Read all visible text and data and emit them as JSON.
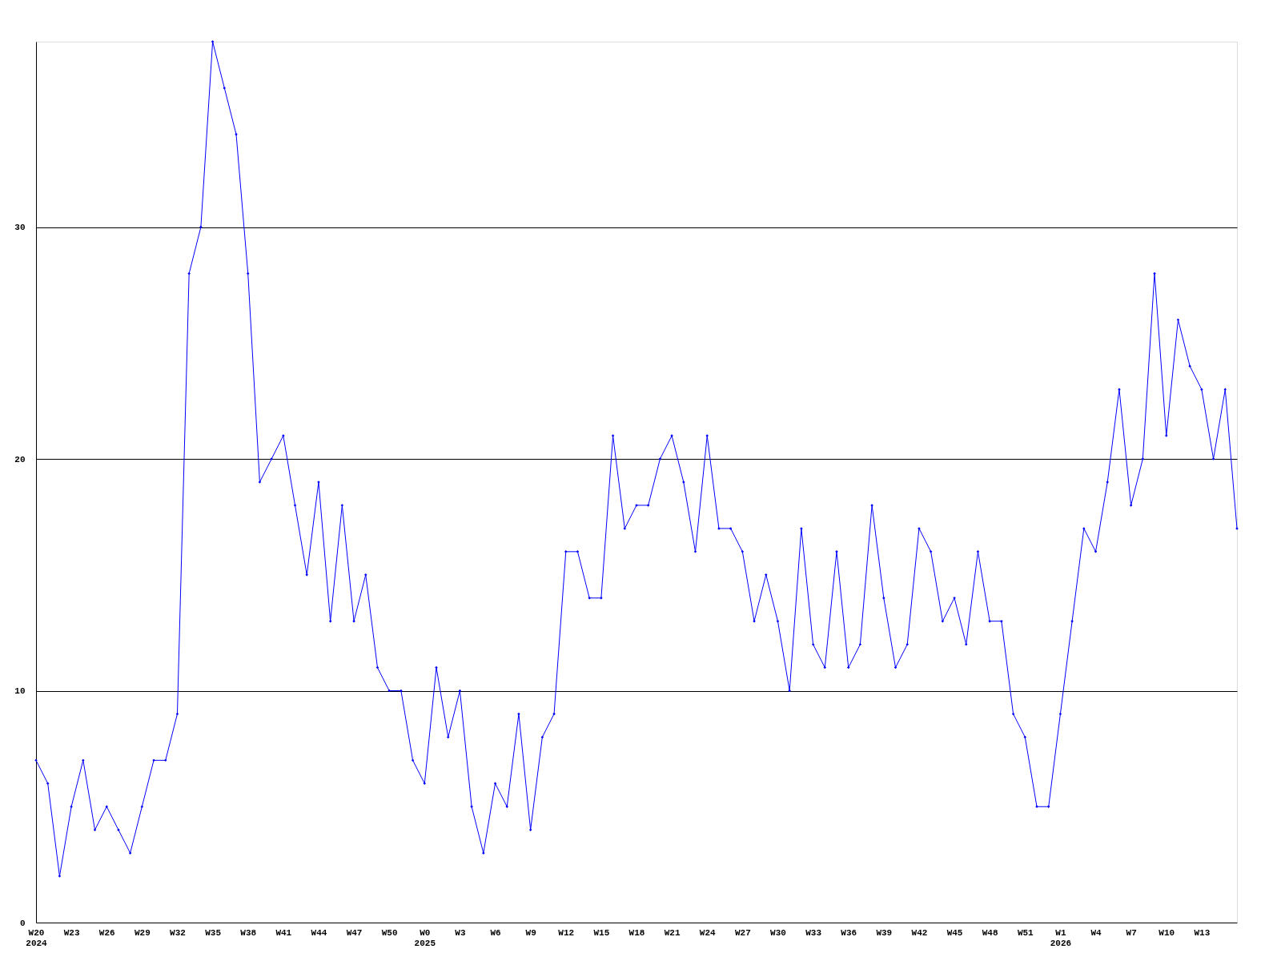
{
  "chart_data": {
    "type": "line",
    "categories": [
      "W20\n2024",
      null,
      null,
      "W23",
      null,
      null,
      "W26",
      null,
      null,
      "W29",
      null,
      null,
      "W32",
      null,
      null,
      "W35",
      null,
      null,
      "W38",
      null,
      null,
      "W41",
      null,
      null,
      "W44",
      null,
      null,
      "W47",
      null,
      null,
      "W50",
      null,
      null,
      "W0\n2025",
      null,
      null,
      "W3",
      null,
      null,
      "W6",
      null,
      null,
      "W9",
      null,
      null,
      "W12",
      null,
      null,
      "W15",
      null,
      null,
      "W18",
      null,
      null,
      "W21",
      null,
      null,
      "W24",
      null,
      null,
      "W27",
      null,
      null,
      "W30",
      null,
      null,
      "W33",
      null,
      null,
      "W36",
      null,
      null,
      "W39",
      null,
      null,
      "W42",
      null,
      null,
      "W45",
      null,
      null,
      "W48",
      null,
      null,
      "W51",
      null,
      null,
      "W1\n2026",
      null,
      null,
      "W4",
      null,
      null,
      "W7",
      null,
      null,
      "W10",
      null,
      null,
      "W13",
      null,
      null,
      null
    ],
    "series": [
      {
        "color": "#0000ff",
        "values": [
          7,
          6,
          2,
          5,
          7,
          4,
          5,
          4,
          3,
          5,
          7,
          7,
          9,
          28,
          30,
          38,
          36,
          34,
          28,
          19,
          20,
          21,
          18,
          15,
          19,
          13,
          18,
          13,
          15,
          11,
          10,
          10,
          7,
          6,
          11,
          8,
          10,
          5,
          3,
          6,
          5,
          9,
          4,
          8,
          9,
          16,
          16,
          14,
          14,
          21,
          17,
          18,
          18,
          20,
          21,
          19,
          16,
          21,
          17,
          17,
          16,
          13,
          15,
          13,
          10,
          17,
          12,
          11,
          16,
          11,
          12,
          18,
          14,
          11,
          12,
          17,
          16,
          13,
          14,
          12,
          16,
          13,
          13,
          9,
          8,
          5,
          5,
          9,
          13,
          17,
          16,
          19,
          23,
          18,
          20,
          28,
          21,
          26,
          24,
          23,
          20,
          23,
          17
        ]
      }
    ],
    "ylim": [
      0,
      38
    ],
    "yticks": [
      0,
      10,
      20,
      30
    ],
    "grid": "y",
    "marker": "diamond",
    "line_style": "solid"
  }
}
